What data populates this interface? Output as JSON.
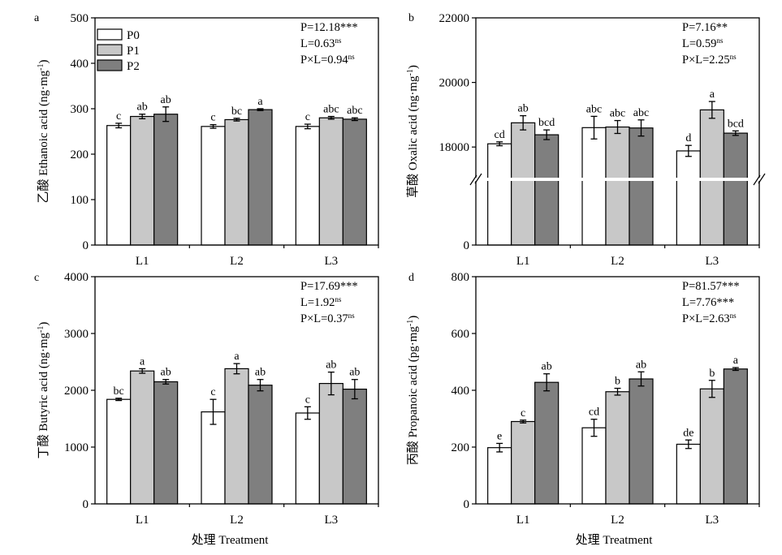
{
  "figure": {
    "xlabel": "处理 Treatment",
    "colors": {
      "P0": "#ffffff",
      "P1": "#c8c8c8",
      "P2": "#7f7f7f",
      "stroke": "#000000"
    }
  },
  "legend": {
    "entries": [
      {
        "key": "P0",
        "label": "P0"
      },
      {
        "key": "P1",
        "label": "P1"
      },
      {
        "key": "P2",
        "label": "P2"
      }
    ]
  },
  "chart_data": [
    {
      "panel": "a",
      "type": "bar",
      "ylabel": "乙酸 Ethanoic acid (ng·mg",
      "ylabel_sup": "-1",
      "ylabel_close": ")",
      "ylim": [
        0,
        500
      ],
      "yticks": [
        0,
        100,
        200,
        300,
        400,
        500
      ],
      "categories": [
        "L1",
        "L2",
        "L3"
      ],
      "series": [
        {
          "name": "P0",
          "values": [
            263,
            261,
            261
          ],
          "errors": [
            5,
            4,
            5
          ],
          "labels": [
            "c",
            "c",
            "c"
          ]
        },
        {
          "name": "P1",
          "values": [
            283,
            276,
            280
          ],
          "errors": [
            5,
            3,
            3
          ],
          "labels": [
            "ab",
            "bc",
            "abc"
          ]
        },
        {
          "name": "P2",
          "values": [
            288,
            298,
            277
          ],
          "errors": [
            16,
            2,
            3
          ],
          "labels": [
            "ab",
            "a",
            "abc"
          ]
        }
      ],
      "stats": [
        {
          "text": "P=12.18***",
          "sup": ""
        },
        {
          "text": "L=0.63",
          "sup": "ns"
        },
        {
          "text": "P×L=0.94",
          "sup": "ns"
        }
      ],
      "legend": true
    },
    {
      "panel": "b",
      "type": "bar",
      "ylabel": "草酸 Oxalic acid (ng·mg",
      "ylabel_sup": "-1",
      "ylabel_close": ")",
      "broken_axis": true,
      "ylim": [
        17000,
        22000
      ],
      "yticks": [
        18000,
        20000,
        22000
      ],
      "categories": [
        "L1",
        "L2",
        "L3"
      ],
      "series": [
        {
          "name": "P0",
          "values": [
            18100,
            18600,
            17880
          ],
          "errors": [
            60,
            350,
            170
          ],
          "labels": [
            "cd",
            "abc",
            "d"
          ]
        },
        {
          "name": "P1",
          "values": [
            18750,
            18620,
            19150
          ],
          "errors": [
            220,
            200,
            260
          ],
          "labels": [
            "ab",
            "abc",
            "a"
          ]
        },
        {
          "name": "P2",
          "values": [
            18380,
            18590,
            18430
          ],
          "errors": [
            150,
            250,
            70
          ],
          "labels": [
            "bcd",
            "abc",
            "bcd"
          ]
        }
      ],
      "stats": [
        {
          "text": "P=7.16**",
          "sup": ""
        },
        {
          "text": "L=0.59",
          "sup": "ns"
        },
        {
          "text": "P×L=2.25",
          "sup": "ns"
        }
      ]
    },
    {
      "panel": "c",
      "type": "bar",
      "ylabel": "丁酸 Butyric acid (ng·mg",
      "ylabel_sup": "-1",
      "ylabel_close": ")",
      "ylim": [
        0,
        4000
      ],
      "yticks": [
        0,
        1000,
        2000,
        3000,
        4000
      ],
      "categories": [
        "L1",
        "L2",
        "L3"
      ],
      "series": [
        {
          "name": "P0",
          "values": [
            1840,
            1620,
            1600
          ],
          "errors": [
            20,
            220,
            110
          ],
          "labels": [
            "bc",
            "c",
            "c"
          ]
        },
        {
          "name": "P1",
          "values": [
            2340,
            2380,
            2120
          ],
          "errors": [
            40,
            90,
            200
          ],
          "labels": [
            "a",
            "a",
            "ab"
          ]
        },
        {
          "name": "P2",
          "values": [
            2150,
            2090,
            2020
          ],
          "errors": [
            40,
            100,
            170
          ],
          "labels": [
            "ab",
            "ab",
            "ab"
          ]
        }
      ],
      "stats": [
        {
          "text": "P=17.69***",
          "sup": ""
        },
        {
          "text": "L=1.92",
          "sup": "ns"
        },
        {
          "text": "P×L=0.37",
          "sup": "ns"
        }
      ]
    },
    {
      "panel": "d",
      "type": "bar",
      "ylabel": "丙酸 Propanoic acid (pg·mg",
      "ylabel_sup": "-1",
      "ylabel_close": ")",
      "ylim": [
        0,
        800
      ],
      "yticks": [
        0,
        200,
        400,
        600,
        800
      ],
      "categories": [
        "L1",
        "L2",
        "L3"
      ],
      "series": [
        {
          "name": "P0",
          "values": [
            198,
            268,
            210
          ],
          "errors": [
            15,
            30,
            15
          ],
          "labels": [
            "e",
            "cd",
            "de"
          ]
        },
        {
          "name": "P1",
          "values": [
            290,
            395,
            405
          ],
          "errors": [
            5,
            12,
            30
          ],
          "labels": [
            "c",
            "b",
            "b"
          ]
        },
        {
          "name": "P2",
          "values": [
            428,
            440,
            475
          ],
          "errors": [
            30,
            25,
            5
          ],
          "labels": [
            "ab",
            "ab",
            "a"
          ]
        }
      ],
      "stats": [
        {
          "text": "P=81.57***",
          "sup": ""
        },
        {
          "text": "L=7.76***",
          "sup": ""
        },
        {
          "text": "P×L=2.63",
          "sup": "ns"
        }
      ]
    }
  ]
}
